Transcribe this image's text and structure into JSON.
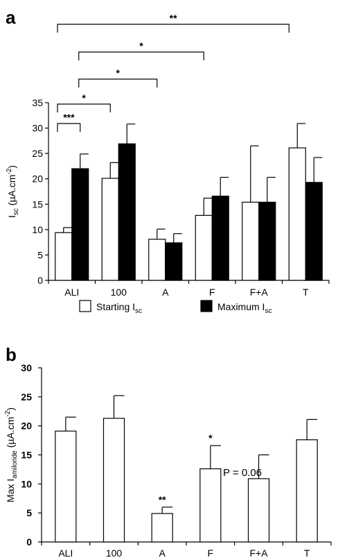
{
  "chart_data": [
    {
      "type": "bar",
      "panel": "a",
      "categories": [
        "ALI",
        "100",
        "A",
        "F",
        "F+A",
        "T"
      ],
      "series": [
        {
          "name": "Starting I",
          "name_sub": "sc",
          "color": "#ffffff",
          "values": [
            9.4,
            20.1,
            8.1,
            12.8,
            15.4,
            26.1
          ],
          "errors": [
            1.0,
            3.1,
            2.0,
            3.4,
            11.1,
            4.8
          ]
        },
        {
          "name": "Maximum I",
          "name_sub": "sc",
          "color": "#000000",
          "values": [
            22.0,
            26.9,
            7.4,
            16.6,
            15.4,
            19.3
          ],
          "errors": [
            2.9,
            3.9,
            1.8,
            3.7,
            4.9,
            4.9
          ]
        }
      ],
      "ylabel": "I",
      "ylabel_sub": "sc",
      "ylabel_rest": " (µA.cm",
      "ylabel_sup": "-2",
      "ylabel_end": ")",
      "ylim": [
        0,
        35
      ],
      "yticks": [
        0,
        5,
        10,
        15,
        20,
        25,
        30,
        35
      ],
      "legend": "bottom",
      "significance": [
        {
          "from": 0,
          "to": 0,
          "label": "***"
        },
        {
          "from": 0,
          "to": 1,
          "label": "*"
        },
        {
          "from": 0,
          "to": 2,
          "label": "*"
        },
        {
          "from": 0,
          "to": 3,
          "label": "*"
        },
        {
          "from": 0,
          "to": 5,
          "label": "**"
        }
      ]
    },
    {
      "type": "bar",
      "panel": "b",
      "categories": [
        "ALI",
        "100",
        "A",
        "F",
        "F+A",
        "T"
      ],
      "values": [
        19.1,
        21.3,
        4.9,
        12.6,
        10.9,
        17.6
      ],
      "errors": [
        2.4,
        3.9,
        1.1,
        4.0,
        4.1,
        3.5
      ],
      "bar_labels": [
        "",
        "",
        "**",
        "*",
        "",
        ""
      ],
      "annotation": "P = 0.06",
      "ylabel": "Max I",
      "ylabel_sub": "amiloride",
      "ylabel_rest": " (µA.cm",
      "ylabel_sup": "-2",
      "ylabel_end": ")",
      "ylim": [
        0,
        30
      ],
      "yticks": [
        0,
        5,
        10,
        15,
        20,
        25,
        30
      ]
    }
  ]
}
